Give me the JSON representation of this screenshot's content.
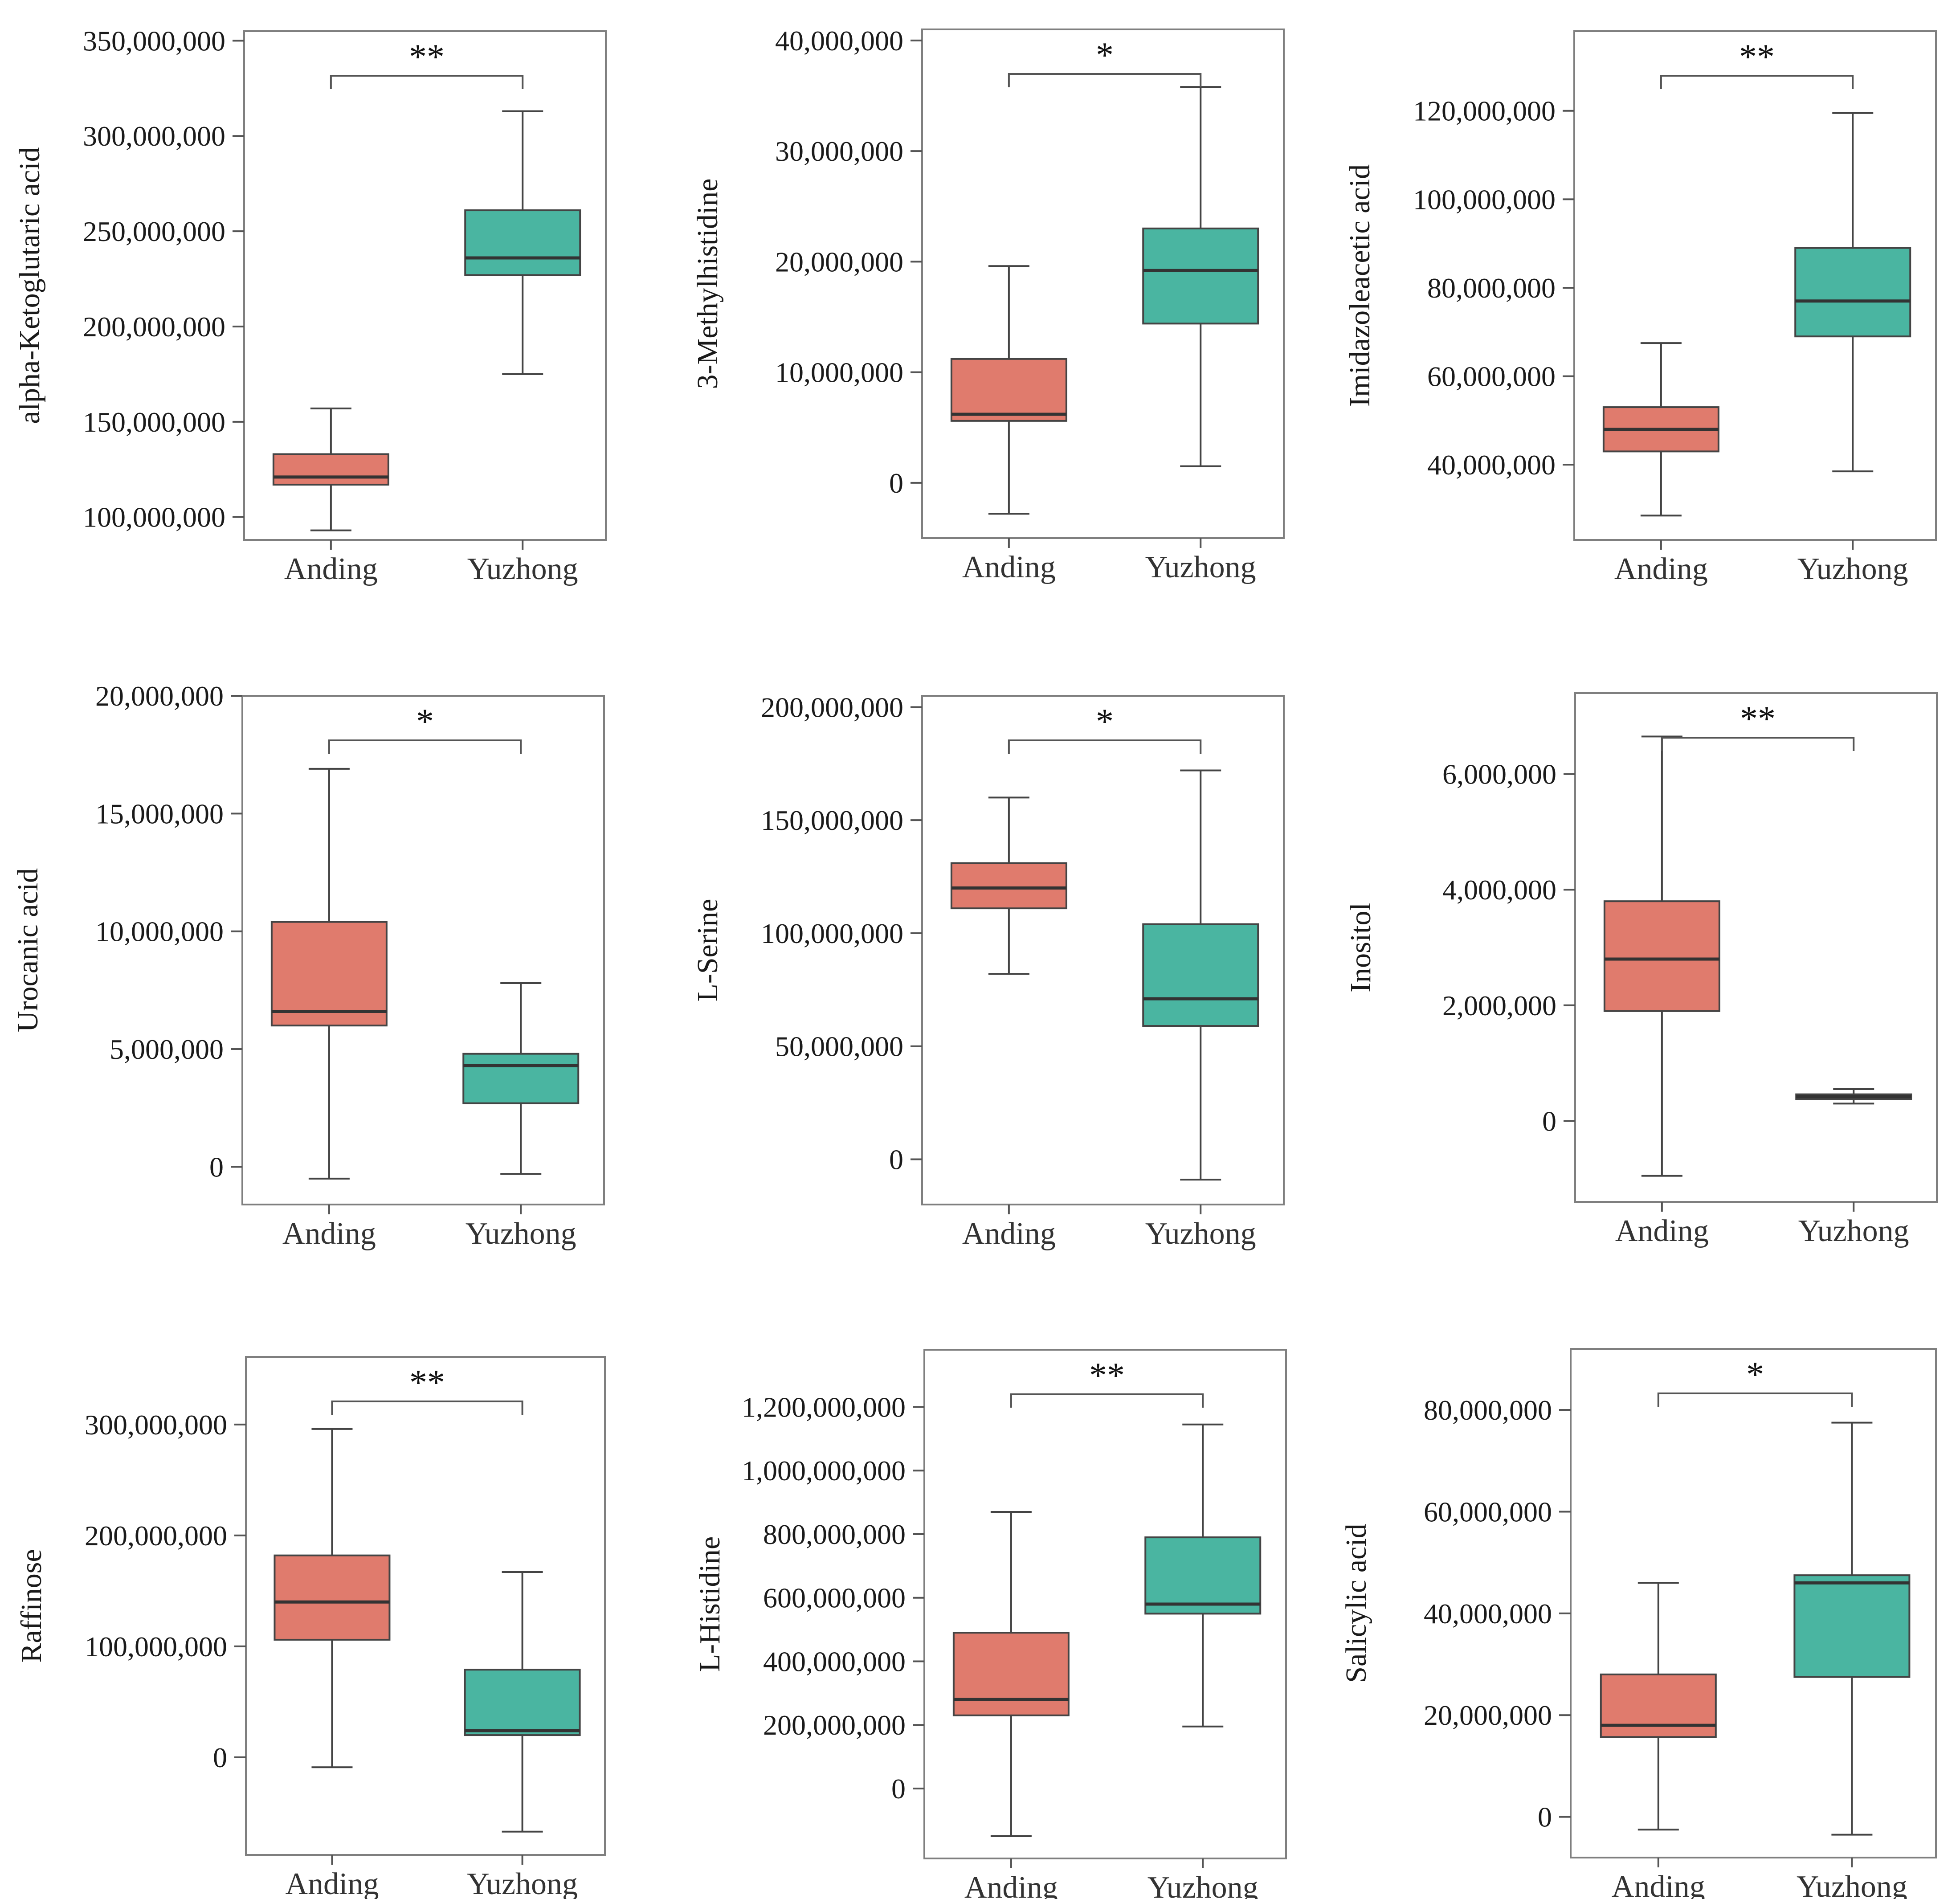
{
  "colors": {
    "anding": "#E07B6D",
    "yuzhong": "#4AB5A1",
    "frame": "#7f7f7f",
    "median": "#333333"
  },
  "chart_data": [
    {
      "type": "box",
      "ylabel": "alpha-Ketoglutaric  acid",
      "categories": [
        "Anding",
        "Yuzhong"
      ],
      "ylim": [
        88000000,
        355000000
      ],
      "ticks": [
        100000000,
        150000000,
        200000000,
        250000000,
        300000000,
        350000000
      ],
      "tick_labels": [
        "100,000,000",
        "150,000,000",
        "200,000,000",
        "250,000,000",
        "300,000,000",
        "350,000,000"
      ],
      "boxes": [
        {
          "min": 93000000,
          "q1": 117000000,
          "median": 121000000,
          "q3": 133000000,
          "max": 157000000
        },
        {
          "min": 175000000,
          "q1": 227000000,
          "median": 236000000,
          "q3": 261000000,
          "max": 313000000
        }
      ],
      "significance": "**"
    },
    {
      "type": "box",
      "ylabel": "3-Methylhistidine",
      "categories": [
        "Anding",
        "Yuzhong"
      ],
      "ylim": [
        -5000000,
        41000000
      ],
      "ticks": [
        0,
        10000000,
        20000000,
        30000000,
        40000000
      ],
      "tick_labels": [
        "0",
        "10,000,000",
        "20,000,000",
        "30,000,000",
        "40,000,000"
      ],
      "boxes": [
        {
          "min": -2800000,
          "q1": 5600000,
          "median": 6200000,
          "q3": 11200000,
          "max": 19600000
        },
        {
          "min": 1500000,
          "q1": 14400000,
          "median": 19200000,
          "q3": 23000000,
          "max": 35800000
        }
      ],
      "significance": "*"
    },
    {
      "type": "box",
      "ylabel": "Imidazoleacetic  acid",
      "categories": [
        "Anding",
        "Yuzhong"
      ],
      "ylim": [
        23000000,
        138000000
      ],
      "ticks": [
        40000000,
        60000000,
        80000000,
        100000000,
        120000000
      ],
      "tick_labels": [
        "40,000,000",
        "60,000,000",
        "80,000,000",
        "100,000,000",
        "120,000,000"
      ],
      "boxes": [
        {
          "min": 28500000,
          "q1": 43000000,
          "median": 48000000,
          "q3": 53000000,
          "max": 67500000
        },
        {
          "min": 38500000,
          "q1": 69000000,
          "median": 77000000,
          "q3": 89000000,
          "max": 119500000
        }
      ],
      "significance": "**"
    },
    {
      "type": "box",
      "ylabel": "Urocanic  acid",
      "categories": [
        "Anding",
        "Yuzhong"
      ],
      "ylim": [
        -1600000,
        20000000
      ],
      "ticks": [
        0,
        5000000,
        10000000,
        15000000,
        20000000
      ],
      "tick_labels": [
        "0",
        "5,000,000",
        "10,000,000",
        "15,000,000",
        "20,000,000"
      ],
      "boxes": [
        {
          "min": -500000,
          "q1": 6000000,
          "median": 6600000,
          "q3": 10400000,
          "max": 16900000
        },
        {
          "min": -300000,
          "q1": 2700000,
          "median": 4300000,
          "q3": 4800000,
          "max": 7800000
        }
      ],
      "significance": "*"
    },
    {
      "type": "box",
      "ylabel": "L-Serine",
      "categories": [
        "Anding",
        "Yuzhong"
      ],
      "ylim": [
        -20000000,
        205000000
      ],
      "ticks": [
        0,
        50000000,
        100000000,
        150000000,
        200000000
      ],
      "tick_labels": [
        "0",
        "50,000,000",
        "100,000,000",
        "150,000,000",
        "200,000,000"
      ],
      "boxes": [
        {
          "min": 82000000,
          "q1": 111000000,
          "median": 120000000,
          "q3": 131000000,
          "max": 160000000
        },
        {
          "min": -9000000,
          "q1": 59000000,
          "median": 71000000,
          "q3": 104000000,
          "max": 172000000
        }
      ],
      "significance": "*"
    },
    {
      "type": "box",
      "ylabel": "Inositol",
      "categories": [
        "Anding",
        "Yuzhong"
      ],
      "ylim": [
        -1400000,
        7400000
      ],
      "ticks": [
        0,
        2000000,
        4000000,
        6000000
      ],
      "tick_labels": [
        "0",
        "2,000,000",
        "4,000,000",
        "6,000,000"
      ],
      "boxes": [
        {
          "min": -950000,
          "q1": 1900000,
          "median": 2800000,
          "q3": 3800000,
          "max": 6650000
        },
        {
          "min": 300000,
          "q1": 380000,
          "median": 420000,
          "q3": 460000,
          "max": 550000
        }
      ],
      "significance": "**"
    },
    {
      "type": "box",
      "ylabel": "Raffinose",
      "categories": [
        "Anding",
        "Yuzhong"
      ],
      "ylim": [
        -88000000,
        361000000
      ],
      "ticks": [
        0,
        100000000,
        200000000,
        300000000
      ],
      "tick_labels": [
        "0",
        "100,000,000",
        "200,000,000",
        "300,000,000"
      ],
      "boxes": [
        {
          "min": -9000000,
          "q1": 106000000,
          "median": 140000000,
          "q3": 182000000,
          "max": 296000000
        },
        {
          "min": -67000000,
          "q1": 20000000,
          "median": 24000000,
          "q3": 79000000,
          "max": 167000000
        }
      ],
      "significance": "**"
    },
    {
      "type": "box",
      "ylabel": "L-Histidine",
      "categories": [
        "Anding",
        "Yuzhong"
      ],
      "ylim": [
        -220000000,
        1380000000
      ],
      "ticks": [
        0,
        200000000,
        400000000,
        600000000,
        800000000,
        1000000000,
        1200000000
      ],
      "tick_labels": [
        "0",
        "200,000,000",
        "400,000,000",
        "600,000,000",
        "800,000,000",
        "1,000,000,000",
        "1,200,000,000"
      ],
      "boxes": [
        {
          "min": -150000000,
          "q1": 230000000,
          "median": 280000000,
          "q3": 490000000,
          "max": 870000000
        },
        {
          "min": 195000000,
          "q1": 550000000,
          "median": 580000000,
          "q3": 790000000,
          "max": 1145000000
        }
      ],
      "significance": "**"
    },
    {
      "type": "box",
      "ylabel": "Salicylic  acid",
      "categories": [
        "Anding",
        "Yuzhong"
      ],
      "ylim": [
        -8000000,
        92000000
      ],
      "ticks": [
        0,
        20000000,
        40000000,
        60000000,
        80000000
      ],
      "tick_labels": [
        "0",
        "20,000,000",
        "40,000,000",
        "60,000,000",
        "80,000,000"
      ],
      "boxes": [
        {
          "min": -2500000,
          "q1": 15700000,
          "median": 18000000,
          "q3": 28000000,
          "max": 46000000
        },
        {
          "min": -3500000,
          "q1": 27500000,
          "median": 46000000,
          "q3": 47500000,
          "max": 77500000
        }
      ],
      "significance": "*"
    }
  ]
}
